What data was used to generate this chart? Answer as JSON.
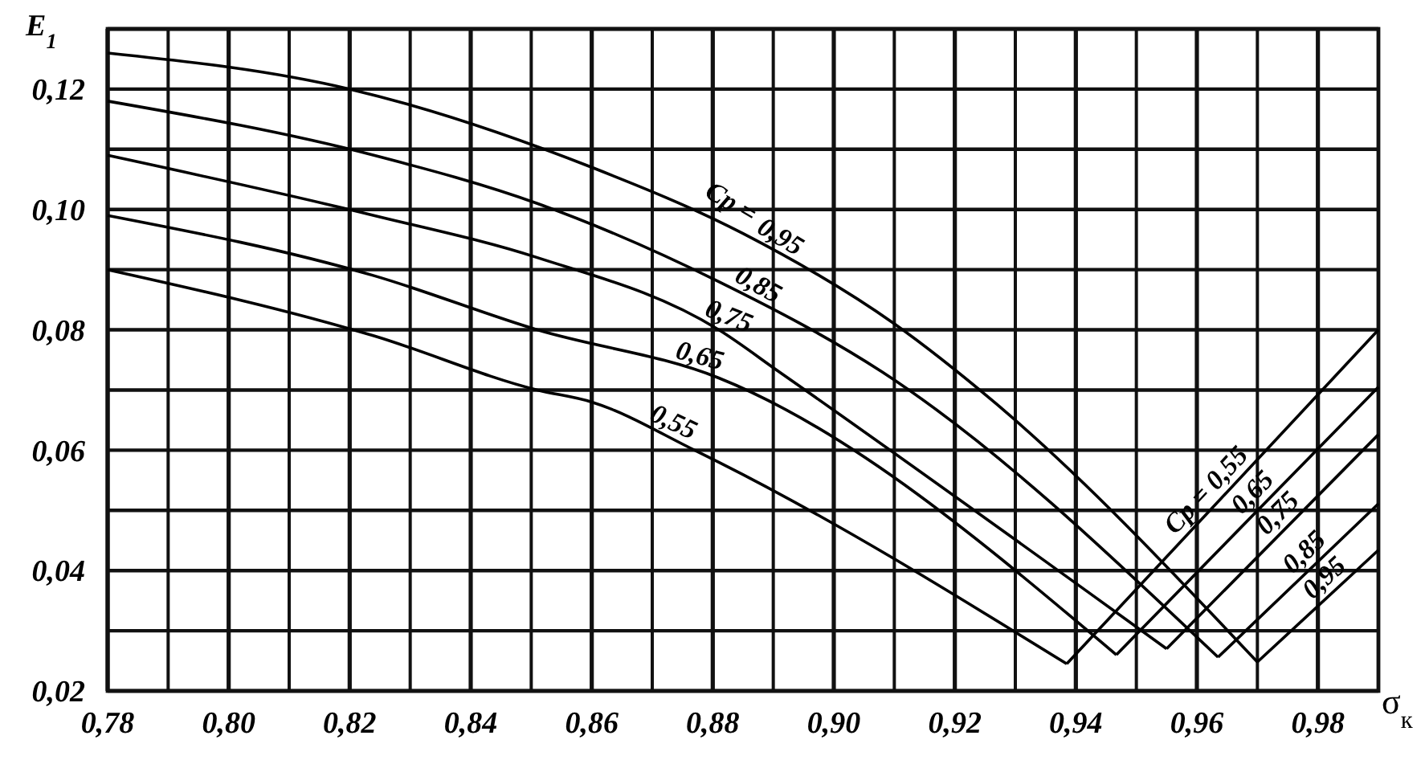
{
  "chart_data": {
    "type": "line",
    "xlabel": "σ$_{к}$",
    "ylabel": "E$_{1}$",
    "xlim": [
      0.78,
      0.99
    ],
    "ylim": [
      0.02,
      0.13
    ],
    "xticks": [
      {
        "value": 0.78,
        "label": "0,78"
      },
      {
        "value": 0.79,
        "label": null
      },
      {
        "value": 0.8,
        "label": "0,80"
      },
      {
        "value": 0.81,
        "label": null
      },
      {
        "value": 0.82,
        "label": "0,82"
      },
      {
        "value": 0.83,
        "label": null
      },
      {
        "value": 0.84,
        "label": "0,84"
      },
      {
        "value": 0.85,
        "label": null
      },
      {
        "value": 0.86,
        "label": "0,86"
      },
      {
        "value": 0.87,
        "label": null
      },
      {
        "value": 0.88,
        "label": "0,88"
      },
      {
        "value": 0.89,
        "label": null
      },
      {
        "value": 0.9,
        "label": "0,90"
      },
      {
        "value": 0.91,
        "label": null
      },
      {
        "value": 0.92,
        "label": "0,92"
      },
      {
        "value": 0.93,
        "label": null
      },
      {
        "value": 0.94,
        "label": "0,94"
      },
      {
        "value": 0.95,
        "label": null
      },
      {
        "value": 0.96,
        "label": "0,96"
      },
      {
        "value": 0.97,
        "label": null
      },
      {
        "value": 0.98,
        "label": "0,98"
      }
    ],
    "yticks": [
      {
        "value": 0.02,
        "label": "0,02"
      },
      {
        "value": 0.03,
        "label": null
      },
      {
        "value": 0.04,
        "label": "0,04"
      },
      {
        "value": 0.05,
        "label": null
      },
      {
        "value": 0.06,
        "label": "0,06"
      },
      {
        "value": 0.07,
        "label": null
      },
      {
        "value": 0.08,
        "label": "0,08"
      },
      {
        "value": 0.09,
        "label": null
      },
      {
        "value": 0.1,
        "label": "0,10"
      },
      {
        "value": 0.11,
        "label": null
      },
      {
        "value": 0.12,
        "label": "0,12"
      },
      {
        "value": 0.13,
        "label": null
      }
    ],
    "grid": true,
    "line_style": "solid",
    "series": [
      {
        "name": "0,55",
        "color": "#000000",
        "x": [
          0.78,
          0.824,
          0.851,
          0.86,
          0.877,
          0.881,
          0.9385,
          0.99
        ],
        "values": [
          0.09,
          0.079,
          0.07,
          0.068,
          0.06,
          0.058,
          0.0245,
          0.08
        ]
      },
      {
        "name": "0,65",
        "color": "#000000",
        "x": [
          0.78,
          0.824,
          0.851,
          0.881,
          0.9467,
          0.99
        ],
        "values": [
          0.099,
          0.089,
          0.08,
          0.072,
          0.026,
          0.0705
        ]
      },
      {
        "name": "0,75",
        "color": "#000000",
        "x": [
          0.78,
          0.824,
          0.851,
          0.881,
          0.891,
          0.955,
          0.99
        ],
        "values": [
          0.109,
          0.099,
          0.092,
          0.08,
          0.073,
          0.027,
          0.0626
        ]
      },
      {
        "name": "0,85",
        "color": "#000000",
        "x": [
          0.78,
          0.824,
          0.851,
          0.881,
          0.908,
          0.9635,
          0.99
        ],
        "values": [
          0.118,
          0.109,
          0.101,
          0.088,
          0.073,
          0.0256,
          0.0511
        ]
      },
      {
        "name": "0,95",
        "color": "#000000",
        "x": [
          0.78,
          0.82,
          0.86,
          0.885,
          0.91,
          0.9265,
          0.97,
          0.99
        ],
        "values": [
          0.126,
          0.12,
          0.107,
          0.096,
          0.081,
          0.068,
          0.0248,
          0.0434
        ]
      }
    ],
    "annotations": [
      {
        "text": "Cp =",
        "x": 0.8855,
        "y": 0.0965
      },
      {
        "text": "Cp =",
        "x": 0.9635,
        "y": 0.0515
      }
    ]
  }
}
